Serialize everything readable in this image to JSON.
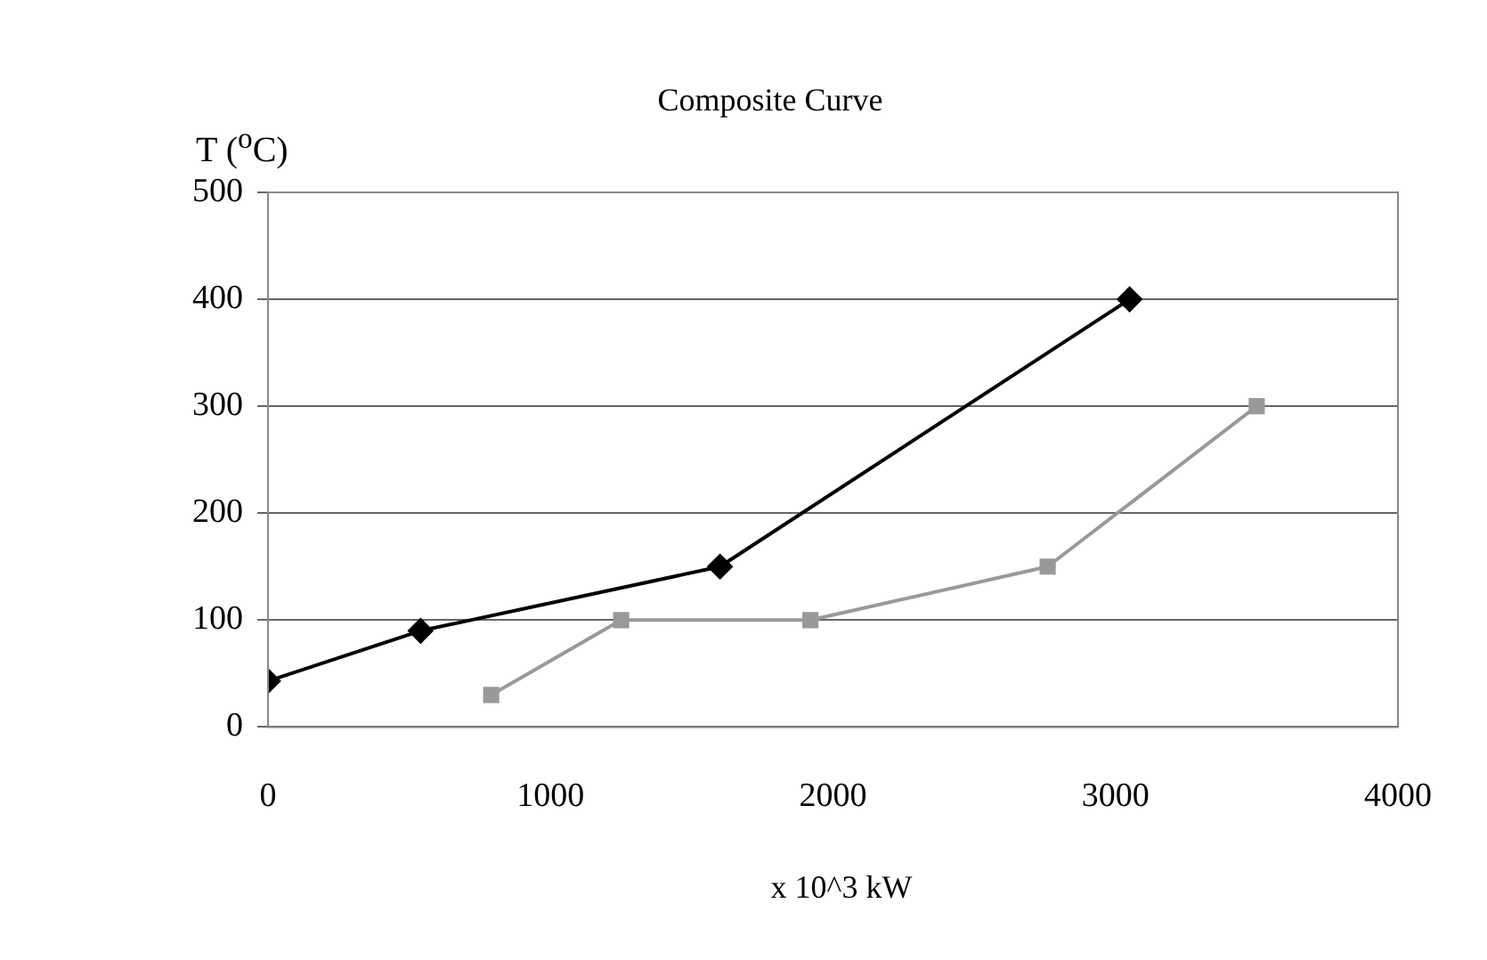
{
  "chart_data": {
    "type": "line",
    "title": "Composite Curve",
    "ylabel": "T ($^{o}$C)",
    "xlabel": "x 10^3 kW",
    "series": [
      {
        "color": "#000000",
        "marker": "diamond",
        "x": [
          0,
          540,
          1600,
          3050
        ],
        "values": [
          43,
          90,
          150,
          400
        ]
      },
      {
        "color": "#999999",
        "marker": "square",
        "x": [
          790,
          1250,
          1920,
          2760,
          3500
        ],
        "values": [
          30,
          100,
          100,
          150,
          300
        ]
      }
    ],
    "xlim": [
      0,
      4000
    ],
    "xticks": [
      0,
      1000,
      2000,
      3000,
      4000
    ],
    "ylim": [
      0,
      500
    ],
    "yticks": [
      0,
      100,
      200,
      300,
      400,
      500
    ],
    "grid": "y",
    "legend": false
  }
}
